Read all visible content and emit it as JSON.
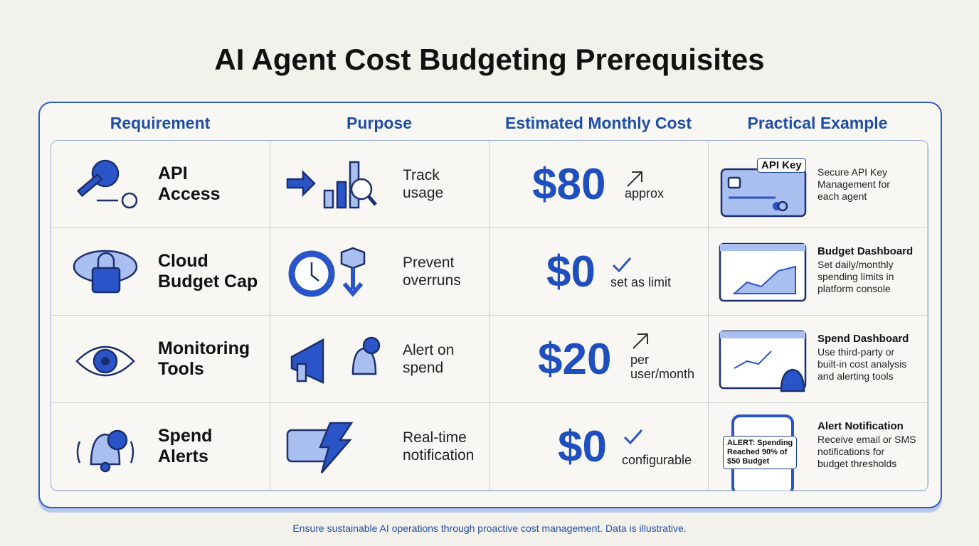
{
  "title": "AI Agent Cost Budgeting Prerequisites",
  "table": {
    "headers": [
      "Requirement",
      "Purpose",
      "Estimated Monthly Cost",
      "Practical Example"
    ],
    "rows": [
      {
        "requirement": [
          "API",
          "Access"
        ],
        "purpose": [
          "Track",
          "usage"
        ],
        "cost": {
          "amount": "$80",
          "note": [
            "approx"
          ]
        },
        "example": {
          "badge": [
            "API Key"
          ],
          "title": null,
          "description": [
            "Secure API Key",
            "Management for",
            "each agent"
          ]
        }
      },
      {
        "requirement": [
          "Cloud",
          "Budget Cap"
        ],
        "purpose": [
          "Prevent",
          "overruns"
        ],
        "cost": {
          "amount": "$0",
          "note": [
            "set as limit"
          ]
        },
        "example": {
          "badge": null,
          "title": "Budget Dashboard",
          "description": [
            "Set daily/monthly",
            "spending limits in",
            "platform console"
          ]
        }
      },
      {
        "requirement": [
          "Monitoring",
          "Tools"
        ],
        "purpose": [
          "Alert on",
          "spend"
        ],
        "cost": {
          "amount": "$20",
          "note": [
            "per",
            "user/month"
          ]
        },
        "example": {
          "badge": null,
          "title": "Spend Dashboard",
          "description": [
            "Use third-party or",
            "built-in cost analysis",
            "and alerting tools"
          ]
        }
      },
      {
        "requirement": [
          "Spend",
          "Alerts"
        ],
        "purpose": [
          "Real-time",
          "notification"
        ],
        "cost": {
          "amount": "$0",
          "note": [
            "configurable"
          ]
        },
        "example": {
          "badge": [
            "ALERT: Spending",
            "Reached 90% of",
            "$50 Budget"
          ],
          "title": "Alert Notification",
          "description": [
            "Receive email or SMS",
            "notifications for",
            "budget thresholds"
          ]
        }
      }
    ]
  },
  "footer": "Ensure sustainable AI operations through proactive cost management. Data is illustrative."
}
